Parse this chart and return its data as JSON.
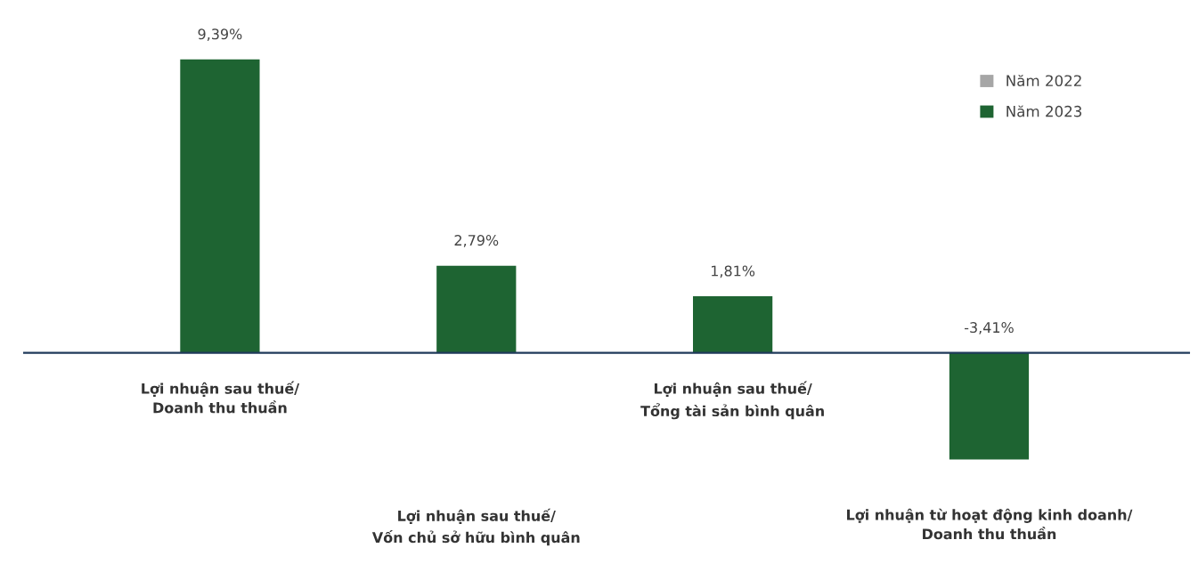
{
  "chart_data": {
    "type": "bar",
    "categories": [
      "Lợi nhuận sau thuế/\nDoanh thu thuần",
      "Lợi nhuận sau thuế/\nVốn chủ sở hữu bình quân",
      "Lợi nhuận sau thuế/\nTổng tài sản bình quân",
      "Lợi nhuận từ hoạt động kinh doanh/\nDoanh thu thuần"
    ],
    "series": [
      {
        "name": "Năm 2022",
        "color": "#a6a6a6",
        "values": [
          null,
          null,
          null,
          null
        ],
        "value_labels": [
          null,
          null,
          null,
          null
        ]
      },
      {
        "name": "Năm 2023",
        "color": "#1e6432",
        "values": [
          9.39,
          2.79,
          1.81,
          -3.41
        ],
        "value_labels": [
          "9,39%",
          "2,79%",
          "1,81%",
          "-3,41%"
        ]
      }
    ],
    "legend": "top right"
  }
}
